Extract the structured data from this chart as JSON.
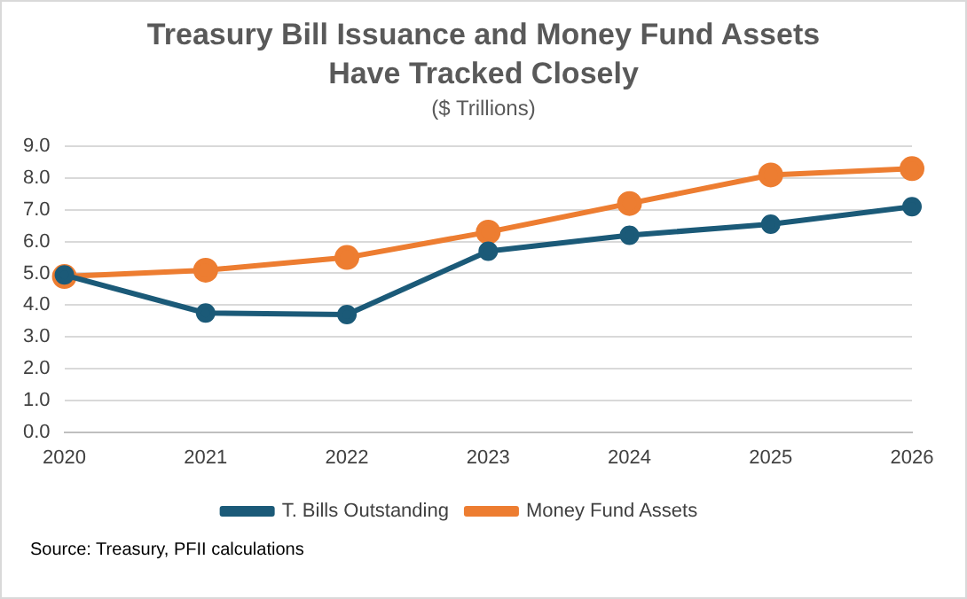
{
  "chart_data": {
    "type": "line",
    "title": "Treasury Bill Issuance and Money Fund Assets Have Tracked Closely",
    "subtitle": "($ Trillions)",
    "categories": [
      "2020",
      "2021",
      "2022",
      "2023",
      "2024",
      "2025",
      "2026"
    ],
    "series": [
      {
        "name": "T. Bills Outstanding",
        "color": "#1b5a78",
        "values": [
          4.95,
          3.75,
          3.7,
          5.7,
          6.2,
          6.55,
          7.1
        ]
      },
      {
        "name": "Money Fund Assets",
        "color": "#ed7d31",
        "values": [
          4.9,
          5.1,
          5.5,
          6.3,
          7.2,
          8.1,
          8.3
        ]
      }
    ],
    "ylim": [
      0,
      9
    ],
    "yticks": [
      {
        "value": 0,
        "label": "0.0"
      },
      {
        "value": 1,
        "label": "1.0"
      },
      {
        "value": 2,
        "label": "2.0"
      },
      {
        "value": 3,
        "label": "3.0"
      },
      {
        "value": 4,
        "label": "4.0"
      },
      {
        "value": 5,
        "label": "5.0"
      },
      {
        "value": 6,
        "label": "6.0"
      },
      {
        "value": 7,
        "label": "7.0"
      },
      {
        "value": 8,
        "label": "8.0"
      },
      {
        "value": 9,
        "label": "9.0"
      }
    ],
    "grid": "y",
    "legend": "bottom",
    "marker": "circle",
    "line_style": "solid",
    "annotations": [
      "Source: Treasury, PFII calculations"
    ]
  }
}
